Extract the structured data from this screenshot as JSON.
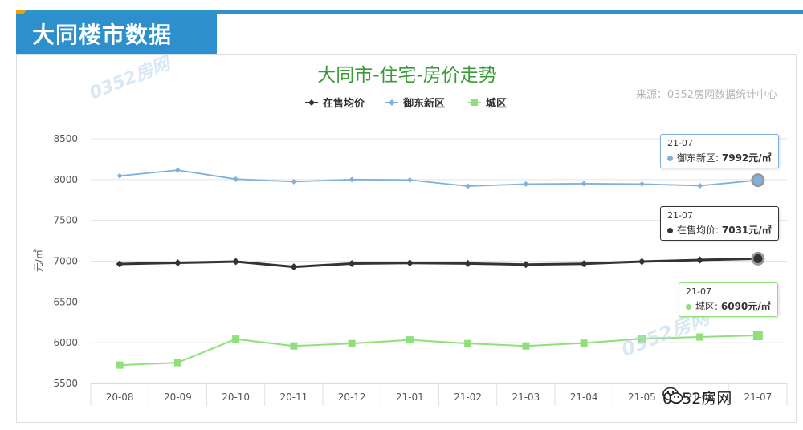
{
  "header": {
    "section_title": "大同楼市数据"
  },
  "watermark_text": "0352房网",
  "brand": {
    "text": "0352房网",
    "icon": "wechat-icon"
  },
  "colors": {
    "banner": "#2d8fcc",
    "title": "#3a9a3a",
    "series_avg": "#333333",
    "series_yudong": "#7fb1df",
    "series_chengqu": "#8fe07a"
  },
  "chart_data": {
    "type": "line",
    "title": "大同市-住宅-房价走势",
    "source": "来源：0352房网数据统计中心",
    "ylabel": "元/㎡",
    "xlabel": "",
    "ylim": [
      5500,
      8500
    ],
    "yticks": [
      5500,
      6000,
      6500,
      7000,
      7500,
      8000,
      8500
    ],
    "grid": true,
    "legend_position": "top",
    "categories": [
      "20-08",
      "20-09",
      "20-10",
      "20-11",
      "20-12",
      "21-01",
      "21-02",
      "21-03",
      "21-04",
      "21-05",
      "21-06",
      "21-07"
    ],
    "series": [
      {
        "name": "在售均价",
        "marker": "diamond",
        "values": [
          6965,
          6980,
          6995,
          6930,
          6970,
          6978,
          6972,
          6958,
          6968,
          6995,
          7015,
          7031
        ]
      },
      {
        "name": "御东新区",
        "marker": "diamond",
        "values": [
          8045,
          8115,
          8005,
          7975,
          8000,
          7995,
          7920,
          7945,
          7950,
          7945,
          7925,
          7992
        ]
      },
      {
        "name": "城区",
        "marker": "square",
        "values": [
          5725,
          5755,
          6045,
          5960,
          5990,
          6035,
          5990,
          5960,
          5995,
          6050,
          6070,
          6090
        ]
      }
    ],
    "tooltips": [
      {
        "date": "21-07",
        "label": "御东新区:",
        "value": "7992元/㎡"
      },
      {
        "date": "21-07",
        "label": "在售均价:",
        "value": "7031元/㎡"
      },
      {
        "date": "21-07",
        "label": "城区:",
        "value": "6090元/㎡"
      }
    ]
  }
}
